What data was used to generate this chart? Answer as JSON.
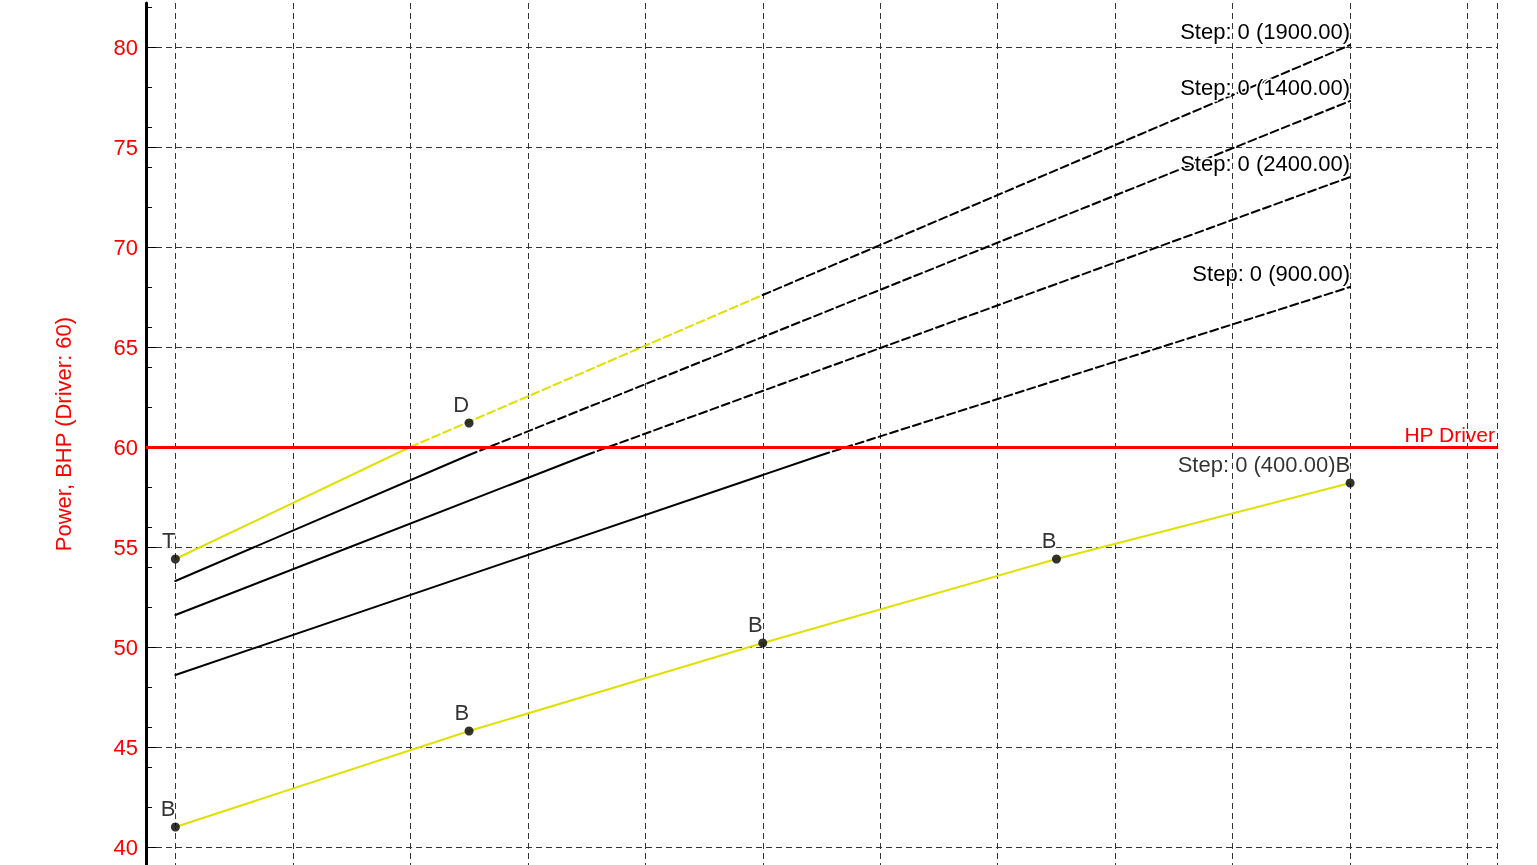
{
  "chart_data": {
    "type": "line",
    "ylabel": "Power, BHP (Driver: 60)",
    "categories": [
      null,
      null,
      null,
      null,
      null,
      null,
      null,
      null,
      null,
      null,
      null,
      null,
      null,
      null,
      null,
      null,
      null,
      null,
      null,
      null,
      null,
      null,
      null
    ],
    "ylim": [
      39.1,
      82.2
    ],
    "yticks": [
      40,
      45,
      50,
      55,
      60,
      65,
      70,
      75,
      80
    ],
    "tick_labels": "y",
    "grid": true,
    "series": [
      {
        "color": "#e0e000",
        "line_style": "solid",
        "marker": "none",
        "values": [
          54.4,
          null,
          null,
          null,
          60.0,
          null,
          null,
          null,
          null,
          null,
          null,
          null,
          null,
          null,
          null,
          null,
          null,
          null,
          null,
          null,
          null,
          null,
          null
        ]
      },
      {
        "color": "#e0e000",
        "line_style": "dashed",
        "marker": "none",
        "values": [
          null,
          null,
          null,
          null,
          60.0,
          null,
          null,
          null,
          null,
          null,
          67.6,
          null,
          null,
          null,
          null,
          null,
          null,
          null,
          null,
          null,
          null,
          null,
          null
        ]
      },
      {
        "color": "#000000",
        "line_style": "dashed",
        "marker": "none",
        "values": [
          null,
          null,
          null,
          null,
          null,
          null,
          null,
          null,
          null,
          null,
          67.6,
          null,
          null,
          null,
          null,
          null,
          null,
          null,
          null,
          null,
          80.1,
          null,
          null
        ],
        "value_labels": [
          null,
          null,
          null,
          null,
          null,
          null,
          null,
          null,
          null,
          null,
          null,
          null,
          null,
          null,
          null,
          null,
          null,
          null,
          null,
          null,
          "Step: 0 (1900.00)",
          null,
          null
        ]
      },
      {
        "color": "#000000",
        "line_style": "solid",
        "marker": "none",
        "values": [
          53.3,
          null,
          null,
          null,
          null,
          59.6,
          null,
          null,
          null,
          null,
          null,
          null,
          null,
          null,
          null,
          null,
          null,
          null,
          null,
          null,
          null,
          null,
          null
        ]
      },
      {
        "color": "#000000",
        "line_style": "dashed",
        "marker": "none",
        "values": [
          null,
          null,
          null,
          null,
          null,
          59.6,
          null,
          null,
          null,
          null,
          null,
          null,
          null,
          null,
          null,
          null,
          null,
          null,
          null,
          null,
          77.3,
          null,
          null
        ],
        "value_labels": [
          null,
          null,
          null,
          null,
          null,
          null,
          null,
          null,
          null,
          null,
          null,
          null,
          null,
          null,
          null,
          null,
          null,
          null,
          null,
          null,
          "Step: 0 (1400.00)",
          null,
          null
        ]
      },
      {
        "color": "#000000",
        "line_style": "solid",
        "marker": "none",
        "values": [
          51.6,
          null,
          null,
          null,
          null,
          null,
          null,
          59.6,
          null,
          null,
          null,
          null,
          null,
          null,
          null,
          null,
          null,
          null,
          null,
          null,
          null,
          null,
          null
        ]
      },
      {
        "color": "#000000",
        "line_style": "dashed",
        "marker": "none",
        "values": [
          null,
          null,
          null,
          null,
          null,
          null,
          null,
          59.6,
          null,
          null,
          null,
          null,
          null,
          null,
          null,
          null,
          null,
          null,
          null,
          null,
          73.5,
          null,
          null
        ],
        "value_labels": [
          null,
          null,
          null,
          null,
          null,
          null,
          null,
          null,
          null,
          null,
          null,
          null,
          null,
          null,
          null,
          null,
          null,
          null,
          null,
          null,
          "Step: 0 (2400.00)",
          null,
          null
        ]
      },
      {
        "color": "#000000",
        "line_style": "solid",
        "marker": "none",
        "values": [
          48.6,
          null,
          null,
          null,
          null,
          null,
          null,
          null,
          null,
          null,
          null,
          59.6,
          null,
          null,
          null,
          null,
          null,
          null,
          null,
          null,
          null,
          null,
          null
        ]
      },
      {
        "color": "#000000",
        "line_style": "dashed",
        "marker": "none",
        "values": [
          null,
          null,
          null,
          null,
          null,
          null,
          null,
          null,
          null,
          null,
          null,
          59.6,
          null,
          null,
          null,
          null,
          null,
          null,
          null,
          null,
          68.0,
          null,
          null
        ],
        "value_labels": [
          null,
          null,
          null,
          null,
          null,
          null,
          null,
          null,
          null,
          null,
          null,
          null,
          null,
          null,
          null,
          null,
          null,
          null,
          null,
          null,
          "Step: 0 (900.00)",
          null,
          null
        ]
      },
      {
        "color": "#e0e000",
        "line_style": "solid",
        "marker": "none",
        "values": [
          41.0,
          null,
          null,
          null,
          null,
          45.8,
          null,
          null,
          null,
          null,
          50.2,
          null,
          null,
          null,
          null,
          54.4,
          null,
          null,
          null,
          null,
          58.2,
          null,
          null
        ]
      },
      {
        "type": "scatter",
        "color": "#000000",
        "marker": "circle",
        "values": [
          41.0,
          null,
          null,
          null,
          null,
          45.8,
          null,
          null,
          null,
          null,
          50.2,
          null,
          null,
          null,
          null,
          54.4,
          null,
          null,
          null,
          null,
          58.2,
          null,
          null
        ],
        "value_labels": [
          "B",
          null,
          null,
          null,
          null,
          "B",
          null,
          null,
          null,
          null,
          "B",
          null,
          null,
          null,
          null,
          "B",
          null,
          null,
          null,
          null,
          "Step: 0 (400.00)B",
          null,
          null
        ]
      },
      {
        "type": "scatter",
        "color": "#000000",
        "marker": "circle",
        "values": [
          54.4,
          null,
          null,
          null,
          null,
          61.2,
          null,
          null,
          null,
          null,
          null,
          null,
          null,
          null,
          null,
          null,
          null,
          null,
          null,
          null,
          null,
          null,
          null
        ],
        "value_labels": [
          "T",
          null,
          null,
          null,
          null,
          "D",
          null,
          null,
          null,
          null,
          null,
          null,
          null,
          null,
          null,
          null,
          null,
          null,
          null,
          null,
          null,
          null,
          null
        ]
      }
    ],
    "ref_lines": [
      {
        "axis": "y",
        "value": 60,
        "label": "HP Driver",
        "color": "#ff0000"
      }
    ]
  }
}
